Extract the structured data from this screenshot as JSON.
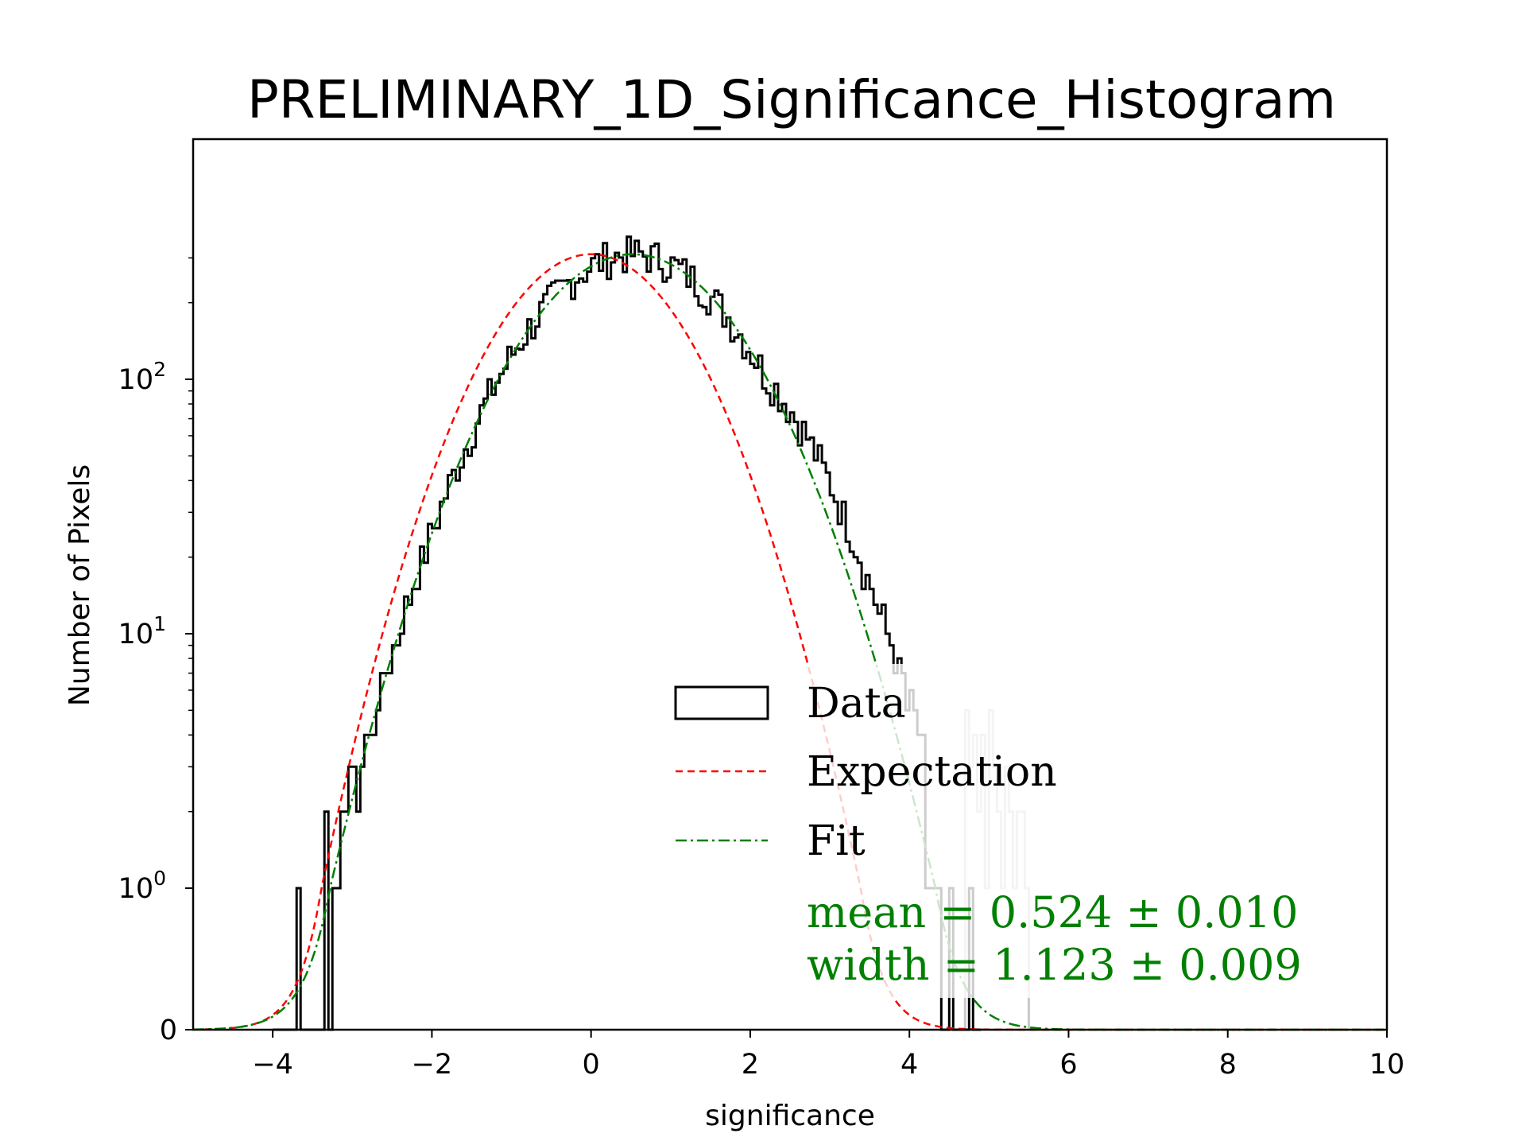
{
  "chart_data": {
    "type": "histogram",
    "title": "PRELIMINARY_1D_Significance_Histogram",
    "xlabel": "significance",
    "ylabel": "Number of Pixels",
    "xlim": [
      -5,
      10
    ],
    "yscale": "symlog",
    "y_major_ticks": [
      0,
      1,
      10,
      100
    ],
    "x_ticks": [
      {
        "value": -4,
        "label": "−4"
      },
      {
        "value": -2,
        "label": "−2"
      },
      {
        "value": 0,
        "label": "0"
      },
      {
        "value": 2,
        "label": "2"
      },
      {
        "value": 4,
        "label": "4"
      },
      {
        "value": 6,
        "label": "6"
      },
      {
        "value": 8,
        "label": "8"
      },
      {
        "value": 10,
        "label": "10"
      }
    ],
    "y_ticks": [
      {
        "value": 0,
        "base": "0",
        "exp": ""
      },
      {
        "value": 1,
        "base": "10",
        "exp": "0"
      },
      {
        "value": 10,
        "base": "10",
        "exp": "1"
      },
      {
        "value": 100,
        "base": "10",
        "exp": "2"
      }
    ],
    "data_histogram": {
      "bin_width": 0.05,
      "x_start": -4.0,
      "x_end": 4.9,
      "peak_count": 320,
      "note": "black step histogram, approx follows Gaussian with mean 0.524 and width 1.123, with excess tail above 2"
    },
    "masked_histogram": {
      "color": "#c8c8c8",
      "x_start": 4.7,
      "x_end": 5.5,
      "approx_values": [
        5,
        3,
        4,
        2,
        4,
        1,
        5,
        3,
        2,
        1,
        3,
        2,
        1,
        2,
        2,
        1
      ]
    },
    "expectation": {
      "name": "Expectation",
      "mean": 0.0,
      "width": 1.0,
      "amplitude": 310,
      "color": "#ff0000",
      "style": "dashed"
    },
    "fit": {
      "name": "Fit",
      "mean": 0.524,
      "width": 1.123,
      "amplitude": 310,
      "color": "#008000",
      "style": "dashdot"
    },
    "legend": {
      "placement": "center-right",
      "entries": [
        {
          "label": "Data",
          "kind": "patch",
          "color": "#000000"
        },
        {
          "label": "Expectation",
          "kind": "line",
          "color": "#ff0000"
        },
        {
          "label": "Fit",
          "kind": "line",
          "color": "#008000"
        }
      ]
    },
    "annotations": {
      "color": "#008000",
      "mean_text": "mean = 0.524 ± 0.010",
      "width_text": "width = 1.123 ± 0.009"
    }
  }
}
